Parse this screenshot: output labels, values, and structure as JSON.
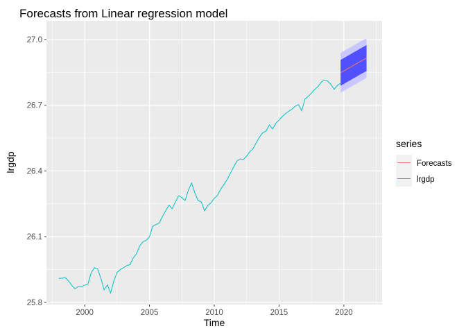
{
  "chart_data": {
    "type": "line",
    "title": "Forecasts from Linear regression model",
    "xlabel": "Time",
    "ylabel": "lrgdp",
    "xlim": [
      1997.05,
      2022.95
    ],
    "ylim": [
      25.79,
      27.085
    ],
    "x_ticks": [
      2000,
      2005,
      2010,
      2015,
      2020
    ],
    "x_tick_labels": [
      "2000",
      "2005",
      "2010",
      "2015",
      "2020"
    ],
    "y_ticks": [
      25.8,
      26.1,
      26.4,
      26.7,
      27.0
    ],
    "y_tick_labels": [
      "25.8",
      "26.1",
      "26.4",
      "26.7",
      "27.0"
    ],
    "grid": true,
    "legend": {
      "title": "series",
      "position": "right",
      "entries": [
        {
          "label": "Forecasts",
          "color": "#F8766D"
        },
        {
          "label": "lrgdp",
          "color": "#00BFC4"
        }
      ]
    },
    "series": [
      {
        "name": "lrgdp",
        "color": "#00BFC4",
        "points": [
          [
            1998.0,
            25.91
          ],
          [
            1998.25,
            25.91
          ],
          [
            1998.5,
            25.913
          ],
          [
            1998.75,
            25.898
          ],
          [
            1999.0,
            25.878
          ],
          [
            1999.25,
            25.862
          ],
          [
            1999.5,
            25.872
          ],
          [
            1999.75,
            25.873
          ],
          [
            2000.0,
            25.878
          ],
          [
            2000.25,
            25.883
          ],
          [
            2000.5,
            25.935
          ],
          [
            2000.75,
            25.958
          ],
          [
            2001.0,
            25.953
          ],
          [
            2001.25,
            25.91
          ],
          [
            2001.5,
            25.857
          ],
          [
            2001.75,
            25.88
          ],
          [
            2002.0,
            25.843
          ],
          [
            2002.25,
            25.898
          ],
          [
            2002.5,
            25.937
          ],
          [
            2002.75,
            25.95
          ],
          [
            2003.0,
            25.958
          ],
          [
            2003.25,
            25.968
          ],
          [
            2003.5,
            25.972
          ],
          [
            2003.75,
            26.003
          ],
          [
            2004.0,
            26.022
          ],
          [
            2004.25,
            26.058
          ],
          [
            2004.5,
            26.077
          ],
          [
            2004.75,
            26.083
          ],
          [
            2005.0,
            26.1
          ],
          [
            2005.25,
            26.148
          ],
          [
            2005.5,
            26.155
          ],
          [
            2005.75,
            26.162
          ],
          [
            2006.0,
            26.192
          ],
          [
            2006.25,
            26.218
          ],
          [
            2006.5,
            26.243
          ],
          [
            2006.75,
            26.228
          ],
          [
            2007.0,
            26.258
          ],
          [
            2007.25,
            26.287
          ],
          [
            2007.5,
            26.278
          ],
          [
            2007.75,
            26.265
          ],
          [
            2008.0,
            26.312
          ],
          [
            2008.25,
            26.345
          ],
          [
            2008.5,
            26.3
          ],
          [
            2008.75,
            26.265
          ],
          [
            2009.0,
            26.258
          ],
          [
            2009.25,
            26.218
          ],
          [
            2009.5,
            26.242
          ],
          [
            2009.75,
            26.255
          ],
          [
            2010.0,
            26.275
          ],
          [
            2010.25,
            26.288
          ],
          [
            2010.5,
            26.318
          ],
          [
            2010.75,
            26.338
          ],
          [
            2011.0,
            26.362
          ],
          [
            2011.25,
            26.39
          ],
          [
            2011.5,
            26.418
          ],
          [
            2011.75,
            26.445
          ],
          [
            2012.0,
            26.455
          ],
          [
            2012.25,
            26.452
          ],
          [
            2012.5,
            26.468
          ],
          [
            2012.75,
            26.488
          ],
          [
            2013.0,
            26.502
          ],
          [
            2013.25,
            26.53
          ],
          [
            2013.5,
            26.555
          ],
          [
            2013.75,
            26.575
          ],
          [
            2014.0,
            26.582
          ],
          [
            2014.25,
            26.61
          ],
          [
            2014.5,
            26.592
          ],
          [
            2014.75,
            26.617
          ],
          [
            2015.0,
            26.632
          ],
          [
            2015.25,
            26.648
          ],
          [
            2015.5,
            26.662
          ],
          [
            2015.75,
            26.672
          ],
          [
            2016.0,
            26.682
          ],
          [
            2016.25,
            26.695
          ],
          [
            2016.5,
            26.703
          ],
          [
            2016.75,
            26.675
          ],
          [
            2017.0,
            26.728
          ],
          [
            2017.25,
            26.74
          ],
          [
            2017.5,
            26.755
          ],
          [
            2017.75,
            26.772
          ],
          [
            2018.0,
            26.785
          ],
          [
            2018.25,
            26.805
          ],
          [
            2018.5,
            26.815
          ],
          [
            2018.75,
            26.81
          ],
          [
            2019.0,
            26.795
          ],
          [
            2019.25,
            26.772
          ],
          [
            2019.5,
            26.79
          ],
          [
            2019.75,
            26.8
          ]
        ]
      },
      {
        "name": "Forecasts",
        "color": "#F8766D",
        "points": [
          [
            2019.75,
            26.848
          ],
          [
            2020.0,
            26.856
          ],
          [
            2020.25,
            26.865
          ],
          [
            2020.5,
            26.873
          ],
          [
            2020.75,
            26.882
          ],
          [
            2021.0,
            26.89
          ],
          [
            2021.25,
            26.899
          ],
          [
            2021.5,
            26.907
          ],
          [
            2021.75,
            26.915
          ]
        ],
        "interval_80": {
          "color": "#5050FF",
          "lower": [
            26.789,
            26.797,
            26.806,
            26.814,
            26.823,
            26.831,
            26.84,
            26.848,
            26.856
          ],
          "upper": [
            26.907,
            26.915,
            26.924,
            26.932,
            26.941,
            26.949,
            26.958,
            26.966,
            26.974
          ]
        },
        "interval_95": {
          "color": "#C8C8FF",
          "lower": [
            26.757,
            26.765,
            26.774,
            26.782,
            26.791,
            26.799,
            26.808,
            26.816,
            26.824
          ],
          "upper": [
            26.939,
            26.947,
            26.956,
            26.964,
            26.973,
            26.981,
            26.99,
            26.998,
            27.006
          ]
        }
      }
    ]
  }
}
